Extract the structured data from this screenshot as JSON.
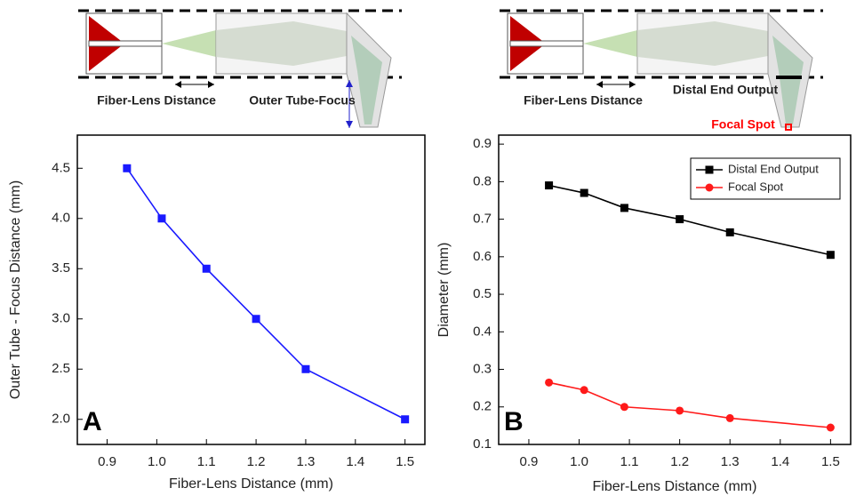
{
  "diagrams": [
    {
      "labels": [
        "Fiber-Lens Distance",
        "Outer Tube-Focus"
      ]
    },
    {
      "labels": [
        "Fiber-Lens Distance",
        "Distal End Output",
        "Focal Spot"
      ]
    }
  ],
  "chart_data": [
    {
      "type": "line",
      "panel_label": "A",
      "x_label": "Fiber-Lens Distance (mm)",
      "y_label": "Outer Tube - Focus Distance (mm)",
      "xlim": [
        0.84,
        1.54
      ],
      "ylim": [
        1.75,
        4.83
      ],
      "xticks": [
        0.9,
        {
          "value": 1,
          "label": "1.0"
        },
        1.1,
        1.2,
        1.3,
        1.4,
        1.5
      ],
      "yticks": [
        {
          "value": 2,
          "label": "2.0"
        },
        2.5,
        {
          "value": 3,
          "label": "3.0"
        },
        3.5,
        {
          "value": 4,
          "label": "4.0"
        },
        4.5
      ],
      "x": [
        0.94,
        1.01,
        1.1,
        1.2,
        1.3,
        1.5
      ],
      "series": [
        {
          "color": "#1a1aff",
          "marker": "square",
          "values": [
            4.5,
            4.0,
            3.5,
            3.0,
            2.5,
            2.0
          ]
        }
      ]
    },
    {
      "type": "line",
      "panel_label": "B",
      "x_label": "Fiber-Lens Distance (mm)",
      "y_label": "Diameter (mm)",
      "xlim": [
        0.84,
        1.54
      ],
      "ylim": [
        0.1,
        0.924
      ],
      "xticks": [
        0.9,
        {
          "value": 1,
          "label": "1.0"
        },
        1.1,
        1.2,
        1.3,
        1.4,
        1.5
      ],
      "yticks": [
        0.1,
        0.2,
        0.3,
        0.4,
        0.5,
        0.6,
        0.7,
        0.8,
        0.9
      ],
      "x": [
        0.94,
        1.01,
        1.09,
        1.2,
        1.3,
        1.5
      ],
      "legend": "upper right",
      "series": [
        {
          "name": "Distal End Output",
          "color": "#000000",
          "marker": "square",
          "values": [
            0.79,
            0.77,
            0.73,
            0.7,
            0.665,
            0.605
          ]
        },
        {
          "name": "Focal Spot",
          "color": "#ff1a1a",
          "marker": "circle",
          "values": [
            0.265,
            0.245,
            0.2,
            0.19,
            0.17,
            0.145
          ]
        }
      ]
    }
  ]
}
